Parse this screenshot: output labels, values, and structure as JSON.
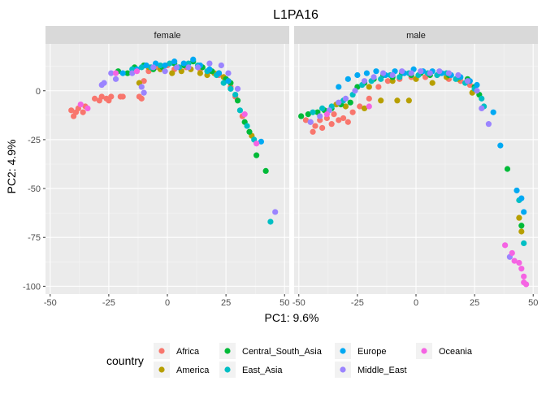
{
  "chart_data": {
    "type": "scatter",
    "title": "L1PA16",
    "xlabel": "PC1: 9.6%",
    "ylabel": "PC2: 4.9%",
    "xlim": [
      -52,
      52
    ],
    "ylim": [
      -104,
      24
    ],
    "xticks": [
      -50,
      -25,
      0,
      25,
      50
    ],
    "yticks": [
      -100,
      -75,
      -50,
      -25,
      0
    ],
    "xtick_labels": [
      "-50",
      "-25",
      "0",
      "25",
      "50"
    ],
    "ytick_labels": [
      "-100",
      "-75",
      "-50",
      "-25",
      "0"
    ],
    "grid": true,
    "facets": [
      "female",
      "male"
    ],
    "legend": {
      "title": "country",
      "placement": "bottom",
      "entries": [
        {
          "name": "Africa",
          "color": "#F8766D"
        },
        {
          "name": "America",
          "color": "#B79F00"
        },
        {
          "name": "Central_South_Asia",
          "color": "#00BA38"
        },
        {
          "name": "East_Asia",
          "color": "#00BFC4"
        },
        {
          "name": "Europe",
          "color": "#00A9F3"
        },
        {
          "name": "Middle_East",
          "color": "#9B84FF"
        },
        {
          "name": "Oceania",
          "color": "#F564E3"
        }
      ]
    },
    "series": [
      {
        "facet": "female",
        "name": "Africa",
        "points": [
          [
            -41,
            -10
          ],
          [
            -40,
            -13
          ],
          [
            -39,
            -11
          ],
          [
            -38,
            -9
          ],
          [
            -36,
            -11
          ],
          [
            -35,
            -8
          ],
          [
            -31,
            -4
          ],
          [
            -29,
            -5
          ],
          [
            -28,
            -3
          ],
          [
            -26,
            -4
          ],
          [
            -25,
            -5
          ],
          [
            -24,
            -3
          ],
          [
            -20,
            -3
          ],
          [
            -19,
            -3
          ],
          [
            -12,
            -3
          ],
          [
            -11,
            -4
          ],
          [
            -10,
            5
          ],
          [
            -8,
            10
          ],
          [
            -5,
            12
          ],
          [
            0,
            13
          ],
          [
            3,
            11
          ],
          [
            8,
            12
          ],
          [
            14,
            11
          ],
          [
            18,
            10
          ],
          [
            22,
            8
          ],
          [
            25,
            6
          ],
          [
            27,
            2
          ],
          [
            29,
            -3
          ],
          [
            32,
            -13
          ]
        ]
      },
      {
        "facet": "female",
        "name": "America",
        "points": [
          [
            -12,
            4
          ],
          [
            -8,
            12
          ],
          [
            -3,
            11
          ],
          [
            2,
            9
          ],
          [
            6,
            10
          ],
          [
            10,
            11
          ],
          [
            14,
            9
          ],
          [
            17,
            8
          ],
          [
            20,
            9
          ],
          [
            24,
            7
          ],
          [
            26,
            5
          ],
          [
            36,
            -23
          ]
        ]
      },
      {
        "facet": "female",
        "name": "Central_South_Asia",
        "points": [
          [
            -21,
            10
          ],
          [
            -17,
            9
          ],
          [
            -14,
            12
          ],
          [
            -10,
            13
          ],
          [
            -6,
            11
          ],
          [
            -2,
            12
          ],
          [
            3,
            14
          ],
          [
            7,
            13
          ],
          [
            11,
            15
          ],
          [
            15,
            12
          ],
          [
            19,
            10
          ],
          [
            22,
            9
          ],
          [
            25,
            6
          ],
          [
            27,
            4
          ],
          [
            30,
            -5
          ],
          [
            33,
            -16
          ],
          [
            35,
            -21
          ],
          [
            38,
            -33
          ],
          [
            42,
            -41
          ]
        ]
      },
      {
        "facet": "female",
        "name": "East_Asia",
        "points": [
          [
            -15,
            11
          ],
          [
            -11,
            12
          ],
          [
            -7,
            12
          ],
          [
            -3,
            13
          ],
          [
            1,
            14
          ],
          [
            5,
            12
          ],
          [
            9,
            14
          ],
          [
            13,
            13
          ],
          [
            17,
            10
          ],
          [
            21,
            8
          ],
          [
            24,
            4
          ],
          [
            27,
            1
          ],
          [
            29,
            -2
          ],
          [
            31,
            -10
          ],
          [
            34,
            -18
          ],
          [
            37,
            -25
          ],
          [
            44,
            -67
          ]
        ]
      },
      {
        "facet": "female",
        "name": "Europe",
        "points": [
          [
            -19,
            9
          ],
          [
            -13,
            11
          ],
          [
            -9,
            13
          ],
          [
            -5,
            14
          ],
          [
            -1,
            13
          ],
          [
            3,
            15
          ],
          [
            7,
            14
          ],
          [
            11,
            16
          ],
          [
            14,
            13
          ],
          [
            18,
            11
          ],
          [
            22,
            9
          ],
          [
            26,
            5
          ],
          [
            40,
            -26
          ]
        ]
      },
      {
        "facet": "female",
        "name": "Middle_East",
        "points": [
          [
            -28,
            3
          ],
          [
            -27,
            4
          ],
          [
            -24,
            9
          ],
          [
            -22,
            6
          ],
          [
            -15,
            9
          ],
          [
            -11,
            2
          ],
          [
            -10,
            -1
          ],
          [
            -6,
            12
          ],
          [
            -1,
            10
          ],
          [
            4,
            12
          ],
          [
            9,
            12
          ],
          [
            13,
            12
          ],
          [
            18,
            14
          ],
          [
            23,
            13
          ],
          [
            26,
            9
          ],
          [
            30,
            1
          ],
          [
            46,
            -62
          ]
        ]
      },
      {
        "facet": "female",
        "name": "Oceania",
        "points": [
          [
            -37,
            -7
          ],
          [
            -34,
            -9
          ],
          [
            -22,
            9
          ],
          [
            -13,
            10
          ],
          [
            33,
            -12
          ],
          [
            38,
            -27
          ]
        ]
      },
      {
        "facet": "male",
        "name": "Africa",
        "points": [
          [
            -47,
            -15
          ],
          [
            -45,
            -16
          ],
          [
            -44,
            -21
          ],
          [
            -43,
            -18
          ],
          [
            -41,
            -15
          ],
          [
            -40,
            -19
          ],
          [
            -38,
            -14
          ],
          [
            -36,
            -17
          ],
          [
            -35,
            -12
          ],
          [
            -33,
            -15
          ],
          [
            -31,
            -14
          ],
          [
            -29,
            -16
          ],
          [
            -27,
            -11
          ],
          [
            -24,
            -8
          ],
          [
            -20,
            -4
          ],
          [
            -16,
            2
          ],
          [
            -12,
            5
          ],
          [
            -7,
            6
          ],
          [
            -2,
            7
          ],
          [
            4,
            7
          ],
          [
            9,
            8
          ],
          [
            14,
            6
          ],
          [
            19,
            5
          ],
          [
            23,
            3
          ]
        ]
      },
      {
        "facet": "male",
        "name": "America",
        "points": [
          [
            -34,
            -7
          ],
          [
            -30,
            -8
          ],
          [
            -22,
            -9
          ],
          [
            -15,
            -5
          ],
          [
            -8,
            -5
          ],
          [
            -3,
            -5
          ],
          [
            -20,
            2
          ],
          [
            -10,
            5
          ],
          [
            0,
            6
          ],
          [
            7,
            4
          ],
          [
            13,
            7
          ],
          [
            18,
            6
          ],
          [
            24,
            -1
          ],
          [
            44,
            -65
          ],
          [
            45,
            -72
          ]
        ]
      },
      {
        "facet": "male",
        "name": "Central_South_Asia",
        "points": [
          [
            -49,
            -13
          ],
          [
            -46,
            -12
          ],
          [
            -42,
            -11
          ],
          [
            -39,
            -10
          ],
          [
            -36,
            -9
          ],
          [
            -32,
            -7
          ],
          [
            -28,
            -6
          ],
          [
            -25,
            2
          ],
          [
            -22,
            4
          ],
          [
            -18,
            6
          ],
          [
            -14,
            8
          ],
          [
            -10,
            7
          ],
          [
            -6,
            9
          ],
          [
            -2,
            8
          ],
          [
            2,
            9
          ],
          [
            6,
            8
          ],
          [
            10,
            9
          ],
          [
            14,
            8
          ],
          [
            18,
            7
          ],
          [
            22,
            6
          ],
          [
            25,
            2
          ],
          [
            27,
            -2
          ],
          [
            39,
            -40
          ],
          [
            45,
            -69
          ]
        ]
      },
      {
        "facet": "male",
        "name": "East_Asia",
        "points": [
          [
            -44,
            -11
          ],
          [
            -40,
            -9
          ],
          [
            -36,
            -8
          ],
          [
            -31,
            -5
          ],
          [
            -27,
            -2
          ],
          [
            -23,
            3
          ],
          [
            -19,
            5
          ],
          [
            -15,
            6
          ],
          [
            -11,
            8
          ],
          [
            -7,
            7
          ],
          [
            -3,
            9
          ],
          [
            1,
            8
          ],
          [
            5,
            9
          ],
          [
            9,
            8
          ],
          [
            13,
            9
          ],
          [
            17,
            6
          ],
          [
            21,
            4
          ],
          [
            25,
            1
          ],
          [
            28,
            -4
          ],
          [
            29,
            -8
          ],
          [
            44,
            -56
          ],
          [
            46,
            -78
          ]
        ]
      },
      {
        "facet": "male",
        "name": "Europe",
        "points": [
          [
            -33,
            2
          ],
          [
            -29,
            6
          ],
          [
            -25,
            8
          ],
          [
            -21,
            9
          ],
          [
            -17,
            10
          ],
          [
            -13,
            8
          ],
          [
            -9,
            10
          ],
          [
            -5,
            9
          ],
          [
            -1,
            11
          ],
          [
            3,
            10
          ],
          [
            7,
            10
          ],
          [
            11,
            9
          ],
          [
            15,
            8
          ],
          [
            19,
            7
          ],
          [
            23,
            5
          ],
          [
            26,
            3
          ],
          [
            33,
            -11
          ],
          [
            36,
            -28
          ],
          [
            43,
            -51
          ],
          [
            45,
            -55
          ],
          [
            46,
            -62
          ]
        ]
      },
      {
        "facet": "male",
        "name": "Middle_East",
        "points": [
          [
            -45,
            -16
          ],
          [
            -41,
            -13
          ],
          [
            -37,
            -10
          ],
          [
            -33,
            -6
          ],
          [
            -30,
            -4
          ],
          [
            -26,
            0
          ],
          [
            -22,
            5
          ],
          [
            -18,
            7
          ],
          [
            -14,
            9
          ],
          [
            -10,
            8
          ],
          [
            -6,
            10
          ],
          [
            -2,
            9
          ],
          [
            2,
            10
          ],
          [
            6,
            9
          ],
          [
            10,
            10
          ],
          [
            14,
            9
          ],
          [
            18,
            8
          ],
          [
            22,
            5
          ],
          [
            26,
            0
          ],
          [
            28,
            -9
          ],
          [
            31,
            -17
          ],
          [
            40,
            -85
          ]
        ]
      },
      {
        "facet": "male",
        "name": "Oceania",
        "points": [
          [
            -38,
            -12
          ],
          [
            -20,
            -8
          ],
          [
            38,
            -79
          ],
          [
            41,
            -83
          ],
          [
            42,
            -87
          ],
          [
            44,
            -88
          ],
          [
            45,
            -91
          ],
          [
            46,
            -95
          ],
          [
            46,
            -98
          ],
          [
            47,
            -99
          ]
        ]
      }
    ]
  }
}
